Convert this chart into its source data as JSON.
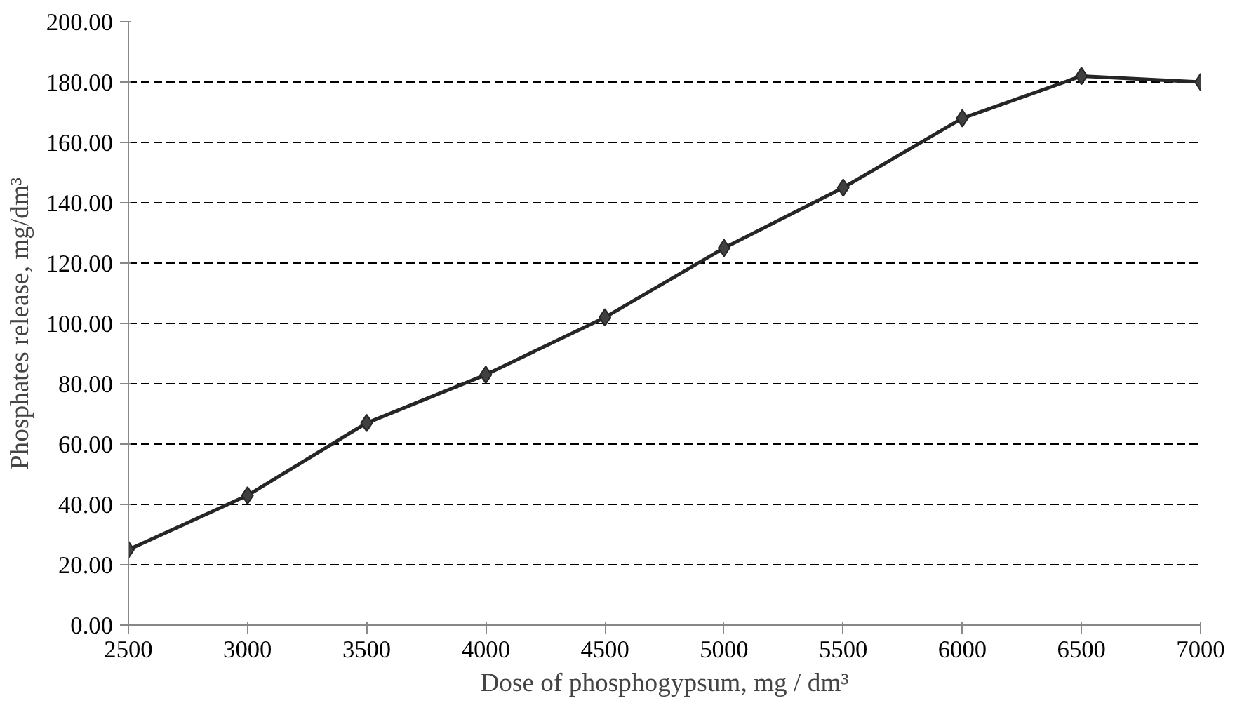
{
  "chart_data": {
    "type": "line",
    "xlabel": "Dose of phosphogypsum, mg / dm³",
    "ylabel": "Phosphates release, mg/dm³",
    "x": [
      2500,
      3000,
      3500,
      4000,
      4500,
      5000,
      5500,
      6000,
      6500,
      7000
    ],
    "series": [
      {
        "color": "#262626",
        "values": [
          25,
          43,
          67,
          83,
          102,
          125,
          145,
          168,
          182,
          180
        ]
      }
    ],
    "xlim": [
      2500,
      7000
    ],
    "xticks": [
      2500,
      3000,
      3500,
      4000,
      4500,
      5000,
      5500,
      6000,
      6500,
      7000
    ],
    "ylim": [
      0,
      200
    ],
    "yticks": [
      {
        "value": 0,
        "label": "0.00"
      },
      {
        "value": 20,
        "label": "20.00"
      },
      {
        "value": 40,
        "label": "40.00"
      },
      {
        "value": 60,
        "label": "60.00"
      },
      {
        "value": 80,
        "label": "80.00"
      },
      {
        "value": 100,
        "label": "100.00"
      },
      {
        "value": 120,
        "label": "120.00"
      },
      {
        "value": 140,
        "label": "140.00"
      },
      {
        "value": 160,
        "label": "160.00"
      },
      {
        "value": 180,
        "label": "180.00"
      },
      {
        "value": 200,
        "label": "200.00"
      }
    ],
    "grid": "y",
    "marker": "diamond",
    "line_style": "solid"
  }
}
